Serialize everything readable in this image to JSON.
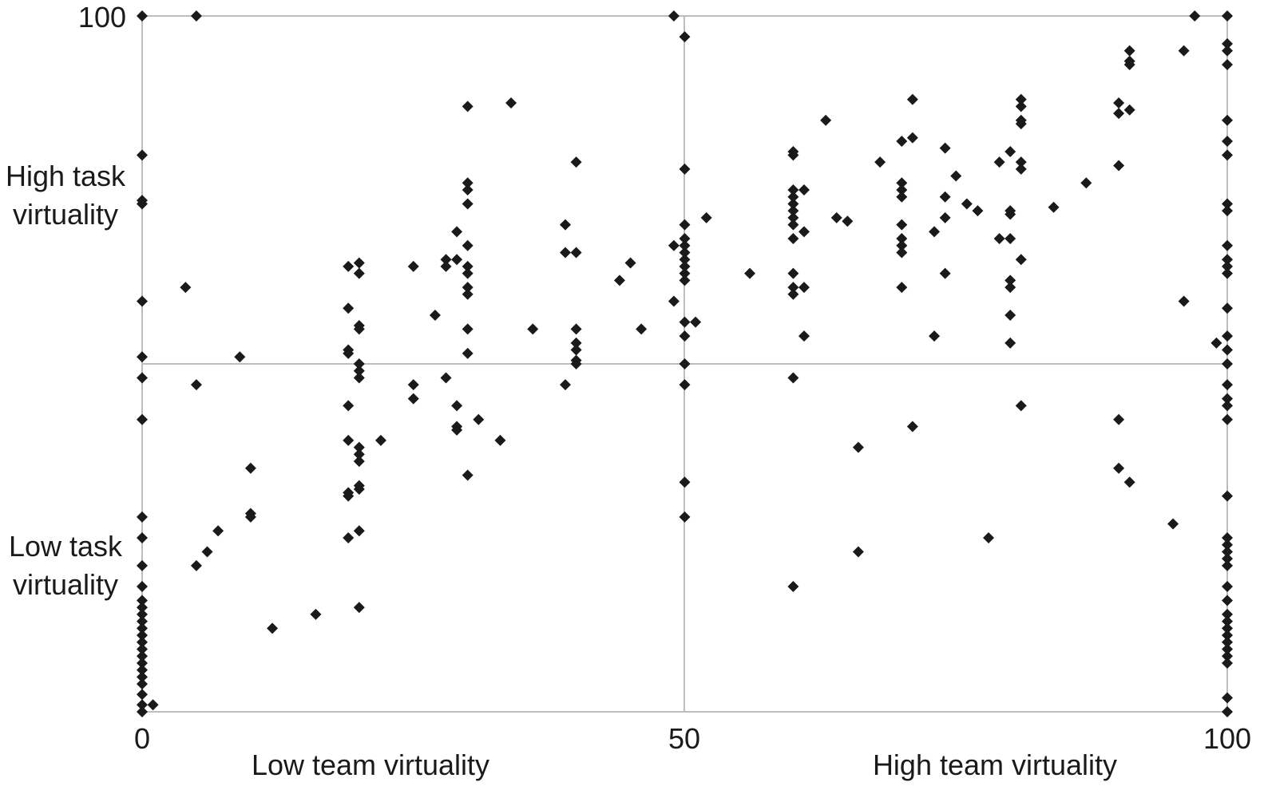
{
  "chart_data": {
    "type": "scatter",
    "title": "",
    "xlabel": "",
    "ylabel": "",
    "xlim": [
      0,
      100
    ],
    "ylim": [
      0,
      100
    ],
    "grid": true,
    "reference_lines": {
      "x": 50,
      "y": 50
    },
    "x_ticks": [
      "0",
      "50",
      "100"
    ],
    "y_ticks": [
      "100"
    ],
    "quadrant_labels": {
      "y_high": [
        "High task",
        "virtuality"
      ],
      "y_low": [
        "Low task",
        "virtuality"
      ],
      "x_low": "Low team virtuality",
      "x_high": "High team virtuality"
    },
    "marker": {
      "shape": "diamond",
      "color": "#1a1a1a"
    },
    "points": [
      [
        0,
        100
      ],
      [
        0,
        80
      ],
      [
        0,
        73.5
      ],
      [
        0,
        73
      ],
      [
        0,
        59
      ],
      [
        0,
        51
      ],
      [
        0,
        48
      ],
      [
        0,
        42
      ],
      [
        0,
        28
      ],
      [
        0,
        25
      ],
      [
        0,
        21
      ],
      [
        0,
        18
      ],
      [
        0,
        16
      ],
      [
        0,
        15
      ],
      [
        0,
        14
      ],
      [
        0,
        13
      ],
      [
        0,
        12
      ],
      [
        0,
        11
      ],
      [
        0,
        10
      ],
      [
        0,
        9
      ],
      [
        0,
        8
      ],
      [
        0,
        7
      ],
      [
        0,
        6
      ],
      [
        0,
        5
      ],
      [
        0,
        4
      ],
      [
        0,
        2.5
      ],
      [
        0,
        1
      ],
      [
        0,
        0
      ],
      [
        1,
        1
      ],
      [
        5,
        100
      ],
      [
        4,
        61
      ],
      [
        5,
        47
      ],
      [
        5,
        21
      ],
      [
        6,
        23
      ],
      [
        7,
        26
      ],
      [
        9,
        51
      ],
      [
        10,
        35
      ],
      [
        10,
        28
      ],
      [
        10,
        28.5
      ],
      [
        12,
        12
      ],
      [
        16,
        14
      ],
      [
        19,
        64
      ],
      [
        19,
        58
      ],
      [
        19,
        52
      ],
      [
        19,
        51.5
      ],
      [
        19,
        44
      ],
      [
        19,
        39
      ],
      [
        19,
        31
      ],
      [
        19,
        31.5
      ],
      [
        19,
        25
      ],
      [
        20,
        64.5
      ],
      [
        20,
        63
      ],
      [
        20,
        55.5
      ],
      [
        20,
        55
      ],
      [
        20,
        50
      ],
      [
        20,
        49
      ],
      [
        20,
        48
      ],
      [
        20,
        38
      ],
      [
        20,
        37
      ],
      [
        20,
        36
      ],
      [
        20,
        32
      ],
      [
        20,
        32.5
      ],
      [
        20,
        26
      ],
      [
        20,
        15
      ],
      [
        22,
        39
      ],
      [
        25,
        64
      ],
      [
        25,
        47
      ],
      [
        25,
        45
      ],
      [
        27,
        57
      ],
      [
        28,
        65
      ],
      [
        28,
        48
      ],
      [
        28,
        64
      ],
      [
        29,
        69
      ],
      [
        29,
        65
      ],
      [
        29,
        44
      ],
      [
        29,
        41
      ],
      [
        29,
        40.5
      ],
      [
        30,
        67
      ],
      [
        30,
        64
      ],
      [
        30,
        63
      ],
      [
        30,
        61
      ],
      [
        30,
        60
      ],
      [
        30,
        55
      ],
      [
        30,
        51.5
      ],
      [
        30,
        34
      ],
      [
        30,
        73
      ],
      [
        30,
        76
      ],
      [
        30,
        75
      ],
      [
        30,
        87
      ],
      [
        31,
        42
      ],
      [
        33,
        39
      ],
      [
        34,
        87.5
      ],
      [
        36,
        55
      ],
      [
        39,
        70
      ],
      [
        39,
        66
      ],
      [
        39,
        47
      ],
      [
        40,
        66
      ],
      [
        40,
        53
      ],
      [
        40,
        55
      ],
      [
        40,
        52
      ],
      [
        40,
        50.5
      ],
      [
        40,
        50
      ],
      [
        40,
        79
      ],
      [
        44,
        62
      ],
      [
        45,
        64.5
      ],
      [
        46,
        55
      ],
      [
        49,
        67
      ],
      [
        49,
        59
      ],
      [
        49,
        100
      ],
      [
        50,
        97
      ],
      [
        50,
        78
      ],
      [
        50,
        70
      ],
      [
        50,
        68
      ],
      [
        50,
        67
      ],
      [
        50,
        66
      ],
      [
        50,
        65
      ],
      [
        50,
        64
      ],
      [
        50,
        63
      ],
      [
        50,
        62
      ],
      [
        50,
        56
      ],
      [
        50,
        54
      ],
      [
        50,
        50
      ],
      [
        50,
        47
      ],
      [
        50,
        33
      ],
      [
        50,
        28
      ],
      [
        51,
        56
      ],
      [
        52,
        71
      ],
      [
        56,
        63
      ],
      [
        60,
        80
      ],
      [
        60,
        80.5
      ],
      [
        60,
        75
      ],
      [
        60,
        74
      ],
      [
        60,
        73
      ],
      [
        60,
        72
      ],
      [
        60,
        71
      ],
      [
        60,
        70
      ],
      [
        60,
        68
      ],
      [
        60,
        63
      ],
      [
        60,
        61
      ],
      [
        60,
        60
      ],
      [
        60,
        48
      ],
      [
        60,
        18
      ],
      [
        61,
        75
      ],
      [
        61,
        69
      ],
      [
        61,
        54
      ],
      [
        61,
        61
      ],
      [
        63,
        85
      ],
      [
        64,
        71
      ],
      [
        65,
        70.5
      ],
      [
        66,
        38
      ],
      [
        66,
        23
      ],
      [
        68,
        79
      ],
      [
        70,
        82
      ],
      [
        70,
        76
      ],
      [
        70,
        75
      ],
      [
        70,
        74
      ],
      [
        70,
        70
      ],
      [
        70,
        68
      ],
      [
        70,
        67
      ],
      [
        70,
        66
      ],
      [
        70,
        61
      ],
      [
        71,
        88
      ],
      [
        71,
        82.5
      ],
      [
        71,
        41
      ],
      [
        73,
        54
      ],
      [
        73,
        69
      ],
      [
        74,
        81
      ],
      [
        74,
        74
      ],
      [
        74,
        71
      ],
      [
        74,
        63
      ],
      [
        75,
        77
      ],
      [
        76,
        73
      ],
      [
        77,
        72
      ],
      [
        78,
        25
      ],
      [
        79,
        79
      ],
      [
        79,
        68
      ],
      [
        80,
        80.5
      ],
      [
        80,
        68
      ],
      [
        80,
        62
      ],
      [
        80,
        61
      ],
      [
        80,
        57
      ],
      [
        80,
        53
      ],
      [
        80,
        72
      ],
      [
        80,
        71.5
      ],
      [
        81,
        88
      ],
      [
        81,
        87
      ],
      [
        81,
        85
      ],
      [
        81,
        84.5
      ],
      [
        81,
        79
      ],
      [
        81,
        78
      ],
      [
        81,
        65
      ],
      [
        81,
        44
      ],
      [
        84,
        72.5
      ],
      [
        87,
        76
      ],
      [
        90,
        87.5
      ],
      [
        90,
        86
      ],
      [
        90,
        78.5
      ],
      [
        90,
        42
      ],
      [
        90,
        35
      ],
      [
        91,
        86.5
      ],
      [
        91,
        95
      ],
      [
        91,
        93.5
      ],
      [
        91,
        93
      ],
      [
        91,
        33
      ],
      [
        95,
        27
      ],
      [
        96,
        59
      ],
      [
        96,
        95
      ],
      [
        97,
        100
      ],
      [
        99,
        53
      ],
      [
        100,
        100
      ],
      [
        100,
        96
      ],
      [
        100,
        95
      ],
      [
        100,
        93
      ],
      [
        100,
        85
      ],
      [
        100,
        82
      ],
      [
        100,
        80
      ],
      [
        100,
        73
      ],
      [
        100,
        72
      ],
      [
        100,
        67
      ],
      [
        100,
        65
      ],
      [
        100,
        64
      ],
      [
        100,
        63
      ],
      [
        100,
        58
      ],
      [
        100,
        54
      ],
      [
        100,
        52
      ],
      [
        100,
        50
      ],
      [
        100,
        47
      ],
      [
        100,
        45
      ],
      [
        100,
        44
      ],
      [
        100,
        42
      ],
      [
        100,
        31
      ],
      [
        100,
        25
      ],
      [
        100,
        24
      ],
      [
        100,
        23
      ],
      [
        100,
        22
      ],
      [
        100,
        21
      ],
      [
        100,
        18
      ],
      [
        100,
        16
      ],
      [
        100,
        14
      ],
      [
        100,
        13
      ],
      [
        100,
        12
      ],
      [
        100,
        11
      ],
      [
        100,
        10
      ],
      [
        100,
        9
      ],
      [
        100,
        8
      ],
      [
        100,
        7
      ],
      [
        100,
        2
      ],
      [
        100,
        0
      ]
    ]
  }
}
